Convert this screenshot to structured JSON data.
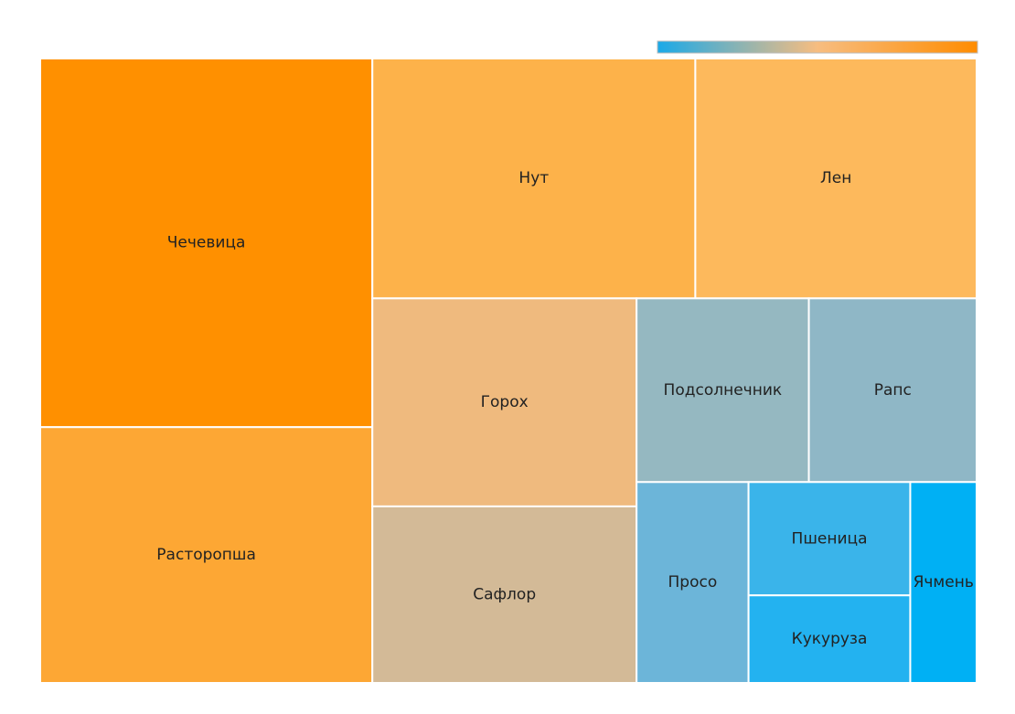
{
  "chart_data": {
    "type": "treemap",
    "title": "",
    "color_scale": {
      "colors": [
        "#1aa9e8",
        "#f7bd80",
        "#ff8c00"
      ]
    },
    "items": [
      {
        "label": "Чечевица",
        "value": 147,
        "color": "#ff9000"
      },
      {
        "label": "Расторопша",
        "value": 102,
        "color": "#fda734"
      },
      {
        "label": "Нут",
        "value": 93,
        "color": "#fdb24a"
      },
      {
        "label": "Лен",
        "value": 81,
        "color": "#fdb95c"
      },
      {
        "label": "Горох",
        "value": 66,
        "color": "#efba7e"
      },
      {
        "label": "Сафлор",
        "value": 56,
        "color": "#d3ba97"
      },
      {
        "label": "Подсолнечник",
        "value": 38,
        "color": "#95b8c1"
      },
      {
        "label": "Рапс",
        "value": 37,
        "color": "#8fb7c6"
      },
      {
        "label": "Просо",
        "value": 27,
        "color": "#6cb5d9"
      },
      {
        "label": "Пшеница",
        "value": 22,
        "color": "#3ab4ea"
      },
      {
        "label": "Кукуруза",
        "value": 17,
        "color": "#23b2f0"
      },
      {
        "label": "Ячмень",
        "value": 16,
        "color": "#00b0f4"
      }
    ]
  }
}
